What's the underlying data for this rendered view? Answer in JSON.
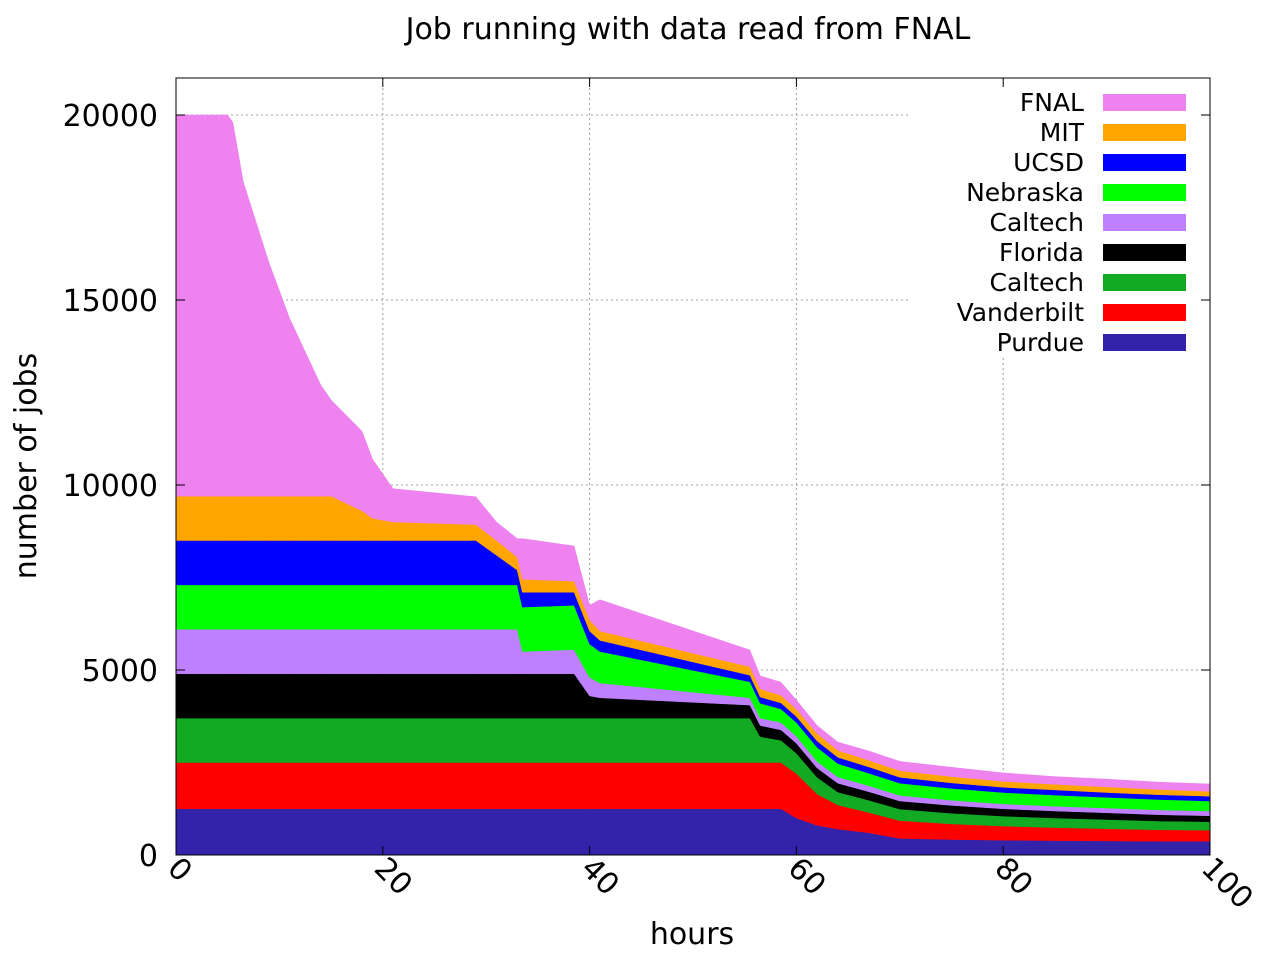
{
  "chart_data": {
    "type": "area",
    "stacked": true,
    "title": "Job running with data read from FNAL",
    "xlabel": "hours",
    "ylabel": "number of jobs",
    "xlim": [
      0,
      100
    ],
    "ylim": [
      0,
      21000
    ],
    "xticks": [
      0,
      20,
      40,
      60,
      80,
      100
    ],
    "xtick_labels": [
      "0",
      "20",
      "40",
      "60",
      "80",
      "100"
    ],
    "yticks": [
      0,
      5000,
      10000,
      15000,
      20000
    ],
    "ytick_labels": [
      "0",
      "5000",
      "10000",
      "15000",
      "20000"
    ],
    "grid": true,
    "legend_position": "top-right",
    "x": [
      0,
      5,
      5.5,
      6.5,
      9,
      11,
      14,
      15,
      18,
      19,
      21,
      29,
      31,
      33,
      33.5,
      38.5,
      40,
      41,
      55.5,
      56.5,
      58.5,
      60,
      62,
      64,
      67,
      70,
      75,
      80,
      85,
      90,
      95,
      100
    ],
    "series": [
      {
        "name": "Purdue",
        "color": "#3322aa",
        "values": [
          1250,
          1250,
          1250,
          1250,
          1250,
          1250,
          1250,
          1250,
          1250,
          1250,
          1250,
          1250,
          1250,
          1250,
          1250,
          1250,
          1250,
          1250,
          1250,
          1250,
          1250,
          1000,
          800,
          700,
          600,
          450,
          420,
          400,
          390,
          380,
          370,
          370
        ]
      },
      {
        "name": "Vanderbilt",
        "color": "#ff0000",
        "values": [
          1250,
          1250,
          1250,
          1250,
          1250,
          1250,
          1250,
          1250,
          1250,
          1250,
          1250,
          1250,
          1250,
          1250,
          1250,
          1250,
          1250,
          1250,
          1250,
          1250,
          1250,
          1200,
          850,
          650,
          550,
          480,
          420,
          380,
          350,
          330,
          310,
          300
        ]
      },
      {
        "name": "Caltech",
        "color": "#11aa22",
        "values": [
          1200,
          1200,
          1200,
          1200,
          1200,
          1200,
          1200,
          1200,
          1200,
          1200,
          1200,
          1200,
          1200,
          1200,
          1200,
          1200,
          1200,
          1200,
          1200,
          700,
          600,
          550,
          450,
          350,
          330,
          310,
          290,
          270,
          260,
          250,
          240,
          230
        ]
      },
      {
        "name": "Florida",
        "color": "#000000",
        "values": [
          1200,
          1200,
          1200,
          1200,
          1200,
          1200,
          1200,
          1200,
          1200,
          1200,
          1200,
          1200,
          1200,
          1200,
          1200,
          1200,
          600,
          550,
          350,
          300,
          280,
          270,
          250,
          240,
          230,
          220,
          210,
          200,
          190,
          180,
          170,
          160
        ]
      },
      {
        "name": "Caltech",
        "color": "#bf80ff",
        "values": [
          1200,
          1200,
          1200,
          1200,
          1200,
          1200,
          1200,
          1200,
          1200,
          1200,
          1200,
          1200,
          1200,
          1200,
          600,
          650,
          500,
          400,
          200,
          200,
          200,
          190,
          180,
          170,
          160,
          150,
          140,
          130,
          130,
          130,
          130,
          130
        ]
      },
      {
        "name": "Nebraska",
        "color": "#00ff00",
        "values": [
          1200,
          1200,
          1200,
          1200,
          1200,
          1200,
          1200,
          1200,
          1200,
          1200,
          1200,
          1200,
          1200,
          1200,
          1200,
          1200,
          900,
          850,
          430,
          400,
          370,
          370,
          380,
          360,
          340,
          330,
          320,
          310,
          300,
          290,
          280,
          270
        ]
      },
      {
        "name": "UCSD",
        "color": "#0000ff",
        "values": [
          1200,
          1200,
          1200,
          1200,
          1200,
          1200,
          1200,
          1200,
          1200,
          1200,
          1200,
          1200,
          800,
          400,
          400,
          350,
          350,
          300,
          180,
          170,
          160,
          160,
          170,
          170,
          170,
          160,
          150,
          140,
          140,
          130,
          130,
          130
        ]
      },
      {
        "name": "MIT",
        "color": "#ffa500",
        "values": [
          1200,
          1200,
          1200,
          1200,
          1200,
          1200,
          1200,
          1200,
          800,
          600,
          500,
          430,
          400,
          350,
          350,
          300,
          300,
          250,
          230,
          220,
          210,
          200,
          200,
          190,
          180,
          180,
          170,
          160,
          150,
          150,
          140,
          130
        ]
      },
      {
        "name": "FNAL",
        "color": "#ee82ee",
        "values": [
          10300,
          10300,
          10100,
          8500,
          6300,
          4800,
          3000,
          2600,
          2150,
          1600,
          900,
          750,
          500,
          500,
          1100,
          950,
          400,
          850,
          450,
          350,
          350,
          250,
          220,
          220,
          250,
          250,
          250,
          230,
          210,
          210,
          200,
          200
        ]
      }
    ]
  }
}
